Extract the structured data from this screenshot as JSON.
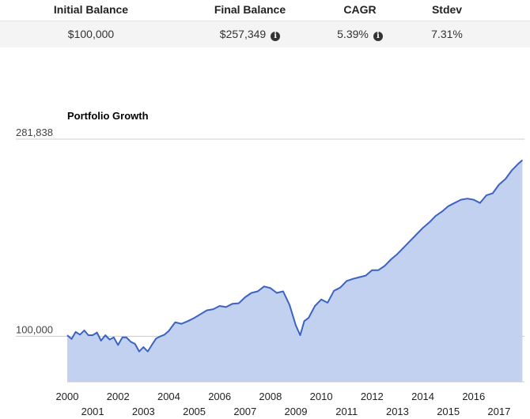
{
  "summary": {
    "headers": [
      "Initial Balance",
      "Final Balance",
      "CAGR",
      "Stdev"
    ],
    "values": [
      "$100,000",
      "$257,349",
      "5.39%",
      "7.31%"
    ],
    "info_icon": "info-circle-icon"
  },
  "chart_data": {
    "type": "area",
    "title": "Portfolio Growth",
    "xlabel": "",
    "ylabel": "",
    "xlim": [
      2000,
      2018
    ],
    "ylim": [
      58000,
      281838
    ],
    "yticks": [
      {
        "value": 281838,
        "label": "281,838"
      },
      {
        "value": 100000,
        "label": "100,000"
      }
    ],
    "xticks": [
      "2000",
      "2001",
      "2002",
      "2003",
      "2004",
      "2005",
      "2006",
      "2007",
      "2008",
      "2009",
      "2010",
      "2011",
      "2012",
      "2013",
      "2014",
      "2015",
      "2016",
      "2017"
    ],
    "grid": true,
    "colors": {
      "line": "#3b63c4",
      "fill": "#c3d1f1",
      "grid": "#cccccc"
    },
    "series": [
      {
        "x": [
          2000.0,
          2000.17,
          2000.33,
          2000.5,
          2000.67,
          2000.83,
          2001.0,
          2001.17,
          2001.33,
          2001.5,
          2001.67,
          2001.83,
          2002.0,
          2002.17,
          2002.33,
          2002.5,
          2002.67,
          2002.83,
          2003.0,
          2003.17,
          2003.33,
          2003.5,
          2003.67,
          2003.83,
          2004.0,
          2004.25,
          2004.5,
          2004.75,
          2005.0,
          2005.25,
          2005.5,
          2005.75,
          2006.0,
          2006.25,
          2006.5,
          2006.75,
          2007.0,
          2007.25,
          2007.5,
          2007.75,
          2008.0,
          2008.25,
          2008.5,
          2008.75,
          2009.0,
          2009.17,
          2009.33,
          2009.5,
          2009.75,
          2010.0,
          2010.25,
          2010.5,
          2010.75,
          2011.0,
          2011.25,
          2011.5,
          2011.75,
          2012.0,
          2012.25,
          2012.5,
          2012.75,
          2013.0,
          2013.25,
          2013.5,
          2013.75,
          2014.0,
          2014.25,
          2014.5,
          2014.75,
          2015.0,
          2015.25,
          2015.5,
          2015.75,
          2016.0,
          2016.25,
          2016.5,
          2016.75,
          2017.0,
          2017.25,
          2017.5,
          2017.75,
          2017.92
        ],
        "values": [
          101000,
          97500,
          104000,
          101500,
          105500,
          101000,
          101000,
          103500,
          96000,
          101000,
          97000,
          99000,
          92000,
          99000,
          99000,
          95000,
          93000,
          86000,
          90000,
          86000,
          92000,
          98000,
          100000,
          101500,
          105000,
          113000,
          111500,
          114000,
          117000,
          120500,
          124000,
          125000,
          128000,
          127000,
          130000,
          130500,
          136000,
          140000,
          141500,
          146000,
          144500,
          140000,
          141500,
          129000,
          110000,
          101000,
          114000,
          117000,
          128000,
          134000,
          131000,
          142000,
          145000,
          151000,
          153000,
          154500,
          156000,
          161000,
          161000,
          165000,
          171000,
          176000,
          182000,
          188000,
          194000,
          200000,
          205000,
          211000,
          215000,
          220000,
          223000,
          226000,
          227000,
          226000,
          223000,
          230000,
          232000,
          240000,
          245000,
          253000,
          259000,
          262500
        ]
      }
    ]
  }
}
